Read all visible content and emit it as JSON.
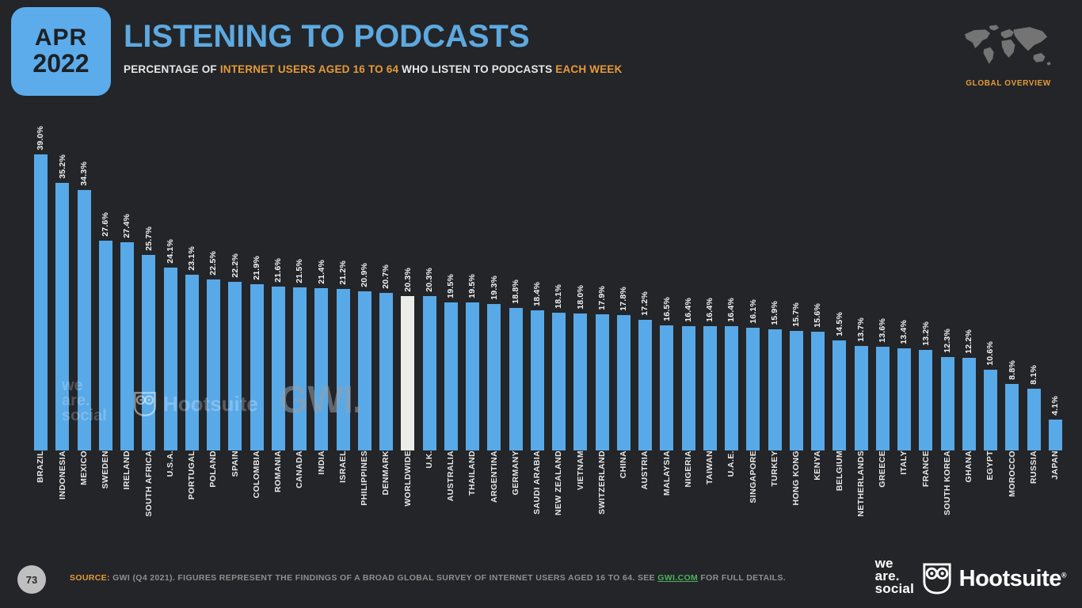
{
  "header": {
    "date_line1": "APR",
    "date_line2": "2022",
    "title": "LISTENING TO PODCASTS",
    "subtitle_prefix": "PERCENTAGE OF ",
    "subtitle_highlight1": "INTERNET USERS AGED 16 TO 64",
    "subtitle_mid": " WHO LISTEN TO PODCASTS ",
    "subtitle_highlight2": "EACH WEEK",
    "corner_label": "GLOBAL OVERVIEW"
  },
  "watermarks": {
    "social_line1": "we",
    "social_line2": "are.",
    "social_line3": "social",
    "hootsuite": "Hootsuite",
    "gwi": "GWI."
  },
  "footer": {
    "page_number": "73",
    "source_label": "SOURCE:",
    "source_text_1": " GWI (Q4 2021). FIGURES REPRESENT THE FINDINGS OF A BROAD GLOBAL SURVEY OF INTERNET USERS AGED 16 TO 64. SEE ",
    "source_link": "GWI.COM",
    "source_text_2": " FOR FULL DETAILS.",
    "logo_was_line1": "we",
    "logo_was_line2": "are.",
    "logo_was_line3": "social",
    "logo_hootsuite": "Hootsuite",
    "logo_hootsuite_reg": "®"
  },
  "colors": {
    "background": "#232528",
    "bar_blue": "#58A9E8",
    "bar_highlight": "#ECECE8",
    "accent_blue": "#5CACEC",
    "accent_orange": "#E79A38",
    "link_green": "#4DB05E"
  },
  "chart_data": {
    "type": "bar",
    "title": "LISTENING TO PODCASTS",
    "subtitle": "PERCENTAGE OF INTERNET USERS AGED 16 TO 64 WHO LISTEN TO PODCASTS EACH WEEK",
    "ylabel": "PERCENTAGE OF INTERNET USERS",
    "xlabel": "",
    "ylim": [
      0,
      40
    ],
    "grid": false,
    "legend": false,
    "value_suffix": "%",
    "value_labels": "rotated 90° above bars",
    "category_labels": "rotated 90° below bars",
    "highlight_category": "WORLDWIDE",
    "categories": [
      "BRAZIL",
      "INDONESIA",
      "MEXICO",
      "SWEDEN",
      "IRELAND",
      "SOUTH AFRICA",
      "U.S.A.",
      "PORTUGAL",
      "POLAND",
      "SPAIN",
      "COLOMBIA",
      "ROMANIA",
      "CANADA",
      "INDIA",
      "ISRAEL",
      "PHILIPPINES",
      "DENMARK",
      "WORLDWIDE",
      "U.K.",
      "AUSTRALIA",
      "THAILAND",
      "ARGENTINA",
      "GERMANY",
      "SAUDI ARABIA",
      "NEW ZEALAND",
      "VIETNAM",
      "SWITZERLAND",
      "CHINA",
      "AUSTRIA",
      "MALAYSIA",
      "NIGERIA",
      "TAIWAN",
      "U.A.E.",
      "SINGAPORE",
      "TURKEY",
      "HONG KONG",
      "KENYA",
      "BELGIUM",
      "NETHERLANDS",
      "GREECE",
      "ITALY",
      "FRANCE",
      "SOUTH KOREA",
      "GHANA",
      "EGYPT",
      "MOROCCO",
      "RUSSIA",
      "JAPAN"
    ],
    "values": [
      39.0,
      35.2,
      34.3,
      27.6,
      27.4,
      25.7,
      24.1,
      23.1,
      22.5,
      22.2,
      21.9,
      21.6,
      21.5,
      21.4,
      21.2,
      20.9,
      20.7,
      20.3,
      20.3,
      19.5,
      19.5,
      19.3,
      18.8,
      18.4,
      18.1,
      18.0,
      17.9,
      17.8,
      17.2,
      16.5,
      16.4,
      16.4,
      16.4,
      16.1,
      15.9,
      15.7,
      15.6,
      14.5,
      13.7,
      13.6,
      13.4,
      13.2,
      12.3,
      12.2,
      10.6,
      8.8,
      8.1,
      4.1
    ]
  }
}
